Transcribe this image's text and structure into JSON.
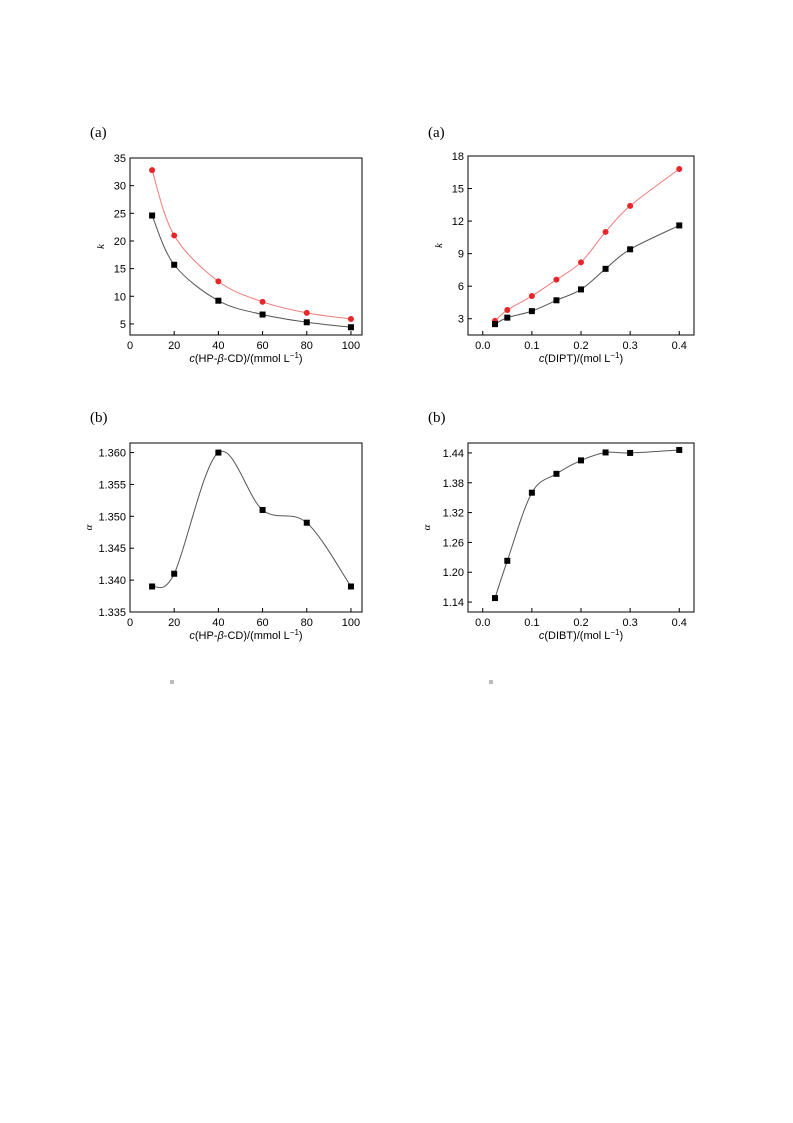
{
  "panels": {
    "top_left": "(a)",
    "top_right": "(a)",
    "bottom_left": "(b)",
    "bottom_right": "(b)"
  },
  "colors": {
    "black_series": "#000000",
    "red_series": "#e8262a",
    "red_line": "#f07a7a",
    "black_line": "#555555",
    "axes": "#000000"
  },
  "chart_data": [
    {
      "id": "chart-tl",
      "type": "line",
      "ylabel": "k",
      "xlabel_parts": [
        "c",
        "(HP-",
        "β",
        "-CD)/(mmol L",
        "−1",
        ")"
      ],
      "xlim": [
        0,
        105
      ],
      "ylim": [
        3,
        35
      ],
      "xticks": [
        0,
        20,
        40,
        60,
        80,
        100
      ],
      "yticks": [
        5,
        10,
        15,
        20,
        25,
        30,
        35
      ],
      "series": [
        {
          "marker": "circle",
          "color": "#e8262a",
          "line": "#f07a7a",
          "x": [
            10,
            20,
            40,
            60,
            80,
            100
          ],
          "y": [
            32.8,
            21.0,
            12.7,
            9.0,
            7.0,
            5.9
          ]
        },
        {
          "marker": "square",
          "color": "#000000",
          "line": "#555555",
          "x": [
            10,
            20,
            40,
            60,
            80,
            100
          ],
          "y": [
            24.6,
            15.7,
            9.2,
            6.7,
            5.3,
            4.4
          ]
        }
      ]
    },
    {
      "id": "chart-tr",
      "type": "line",
      "ylabel": "k",
      "xlabel_parts": [
        "c",
        "(DIPT)/(mol L",
        "−1",
        ")"
      ],
      "xlim": [
        -0.03,
        0.43
      ],
      "ylim": [
        1.5,
        18
      ],
      "xticks": [
        0.0,
        0.1,
        0.2,
        0.3,
        0.4
      ],
      "xtick_labels": [
        "0.0",
        "0.1",
        "0.2",
        "0.3",
        "0.4"
      ],
      "yticks": [
        3,
        6,
        9,
        12,
        15,
        18
      ],
      "series": [
        {
          "marker": "circle",
          "color": "#e8262a",
          "line": "#f07a7a",
          "x": [
            0.025,
            0.05,
            0.1,
            0.15,
            0.2,
            0.25,
            0.3,
            0.4
          ],
          "y": [
            2.8,
            3.8,
            5.1,
            6.6,
            8.2,
            11.0,
            13.4,
            16.8
          ]
        },
        {
          "marker": "square",
          "color": "#000000",
          "line": "#555555",
          "x": [
            0.025,
            0.05,
            0.1,
            0.15,
            0.2,
            0.25,
            0.3,
            0.4
          ],
          "y": [
            2.5,
            3.1,
            3.7,
            4.7,
            5.7,
            7.6,
            9.4,
            11.6
          ]
        }
      ]
    },
    {
      "id": "chart-bl",
      "type": "line",
      "ylabel": "α",
      "xlabel_parts": [
        "c",
        "(HP-",
        "β",
        "-CD)/(mmol L",
        "−1",
        ")"
      ],
      "xlim": [
        0,
        105
      ],
      "ylim": [
        1.335,
        1.3615
      ],
      "xticks": [
        0,
        20,
        40,
        60,
        80,
        100
      ],
      "yticks": [
        1.335,
        1.34,
        1.345,
        1.35,
        1.355,
        1.36
      ],
      "ytick_labels": [
        "1.335",
        "1.340",
        "1.345",
        "1.350",
        "1.355",
        "1.360"
      ],
      "series": [
        {
          "marker": "square",
          "color": "#000000",
          "line": "#555555",
          "x": [
            10,
            20,
            40,
            60,
            80,
            100
          ],
          "y": [
            1.339,
            1.341,
            1.36,
            1.351,
            1.349,
            1.339
          ]
        }
      ]
    },
    {
      "id": "chart-br",
      "type": "line",
      "ylabel": "α",
      "xlabel_parts": [
        "c",
        "(DIBT)/(mol L",
        "−1",
        ")"
      ],
      "xlim": [
        -0.03,
        0.43
      ],
      "ylim": [
        1.12,
        1.46
      ],
      "xticks": [
        0.0,
        0.1,
        0.2,
        0.3,
        0.4
      ],
      "xtick_labels": [
        "0.0",
        "0.1",
        "0.2",
        "0.3",
        "0.4"
      ],
      "yticks": [
        1.14,
        1.2,
        1.26,
        1.32,
        1.38,
        1.44
      ],
      "ytick_labels": [
        "1.14",
        "1.20",
        "1.26",
        "1.32",
        "1.38",
        "1.44"
      ],
      "series": [
        {
          "marker": "square",
          "color": "#000000",
          "line": "#555555",
          "x": [
            0.025,
            0.05,
            0.1,
            0.15,
            0.2,
            0.25,
            0.3,
            0.4
          ],
          "y": [
            1.148,
            1.223,
            1.36,
            1.398,
            1.425,
            1.441,
            1.44,
            1.446
          ]
        }
      ]
    }
  ]
}
